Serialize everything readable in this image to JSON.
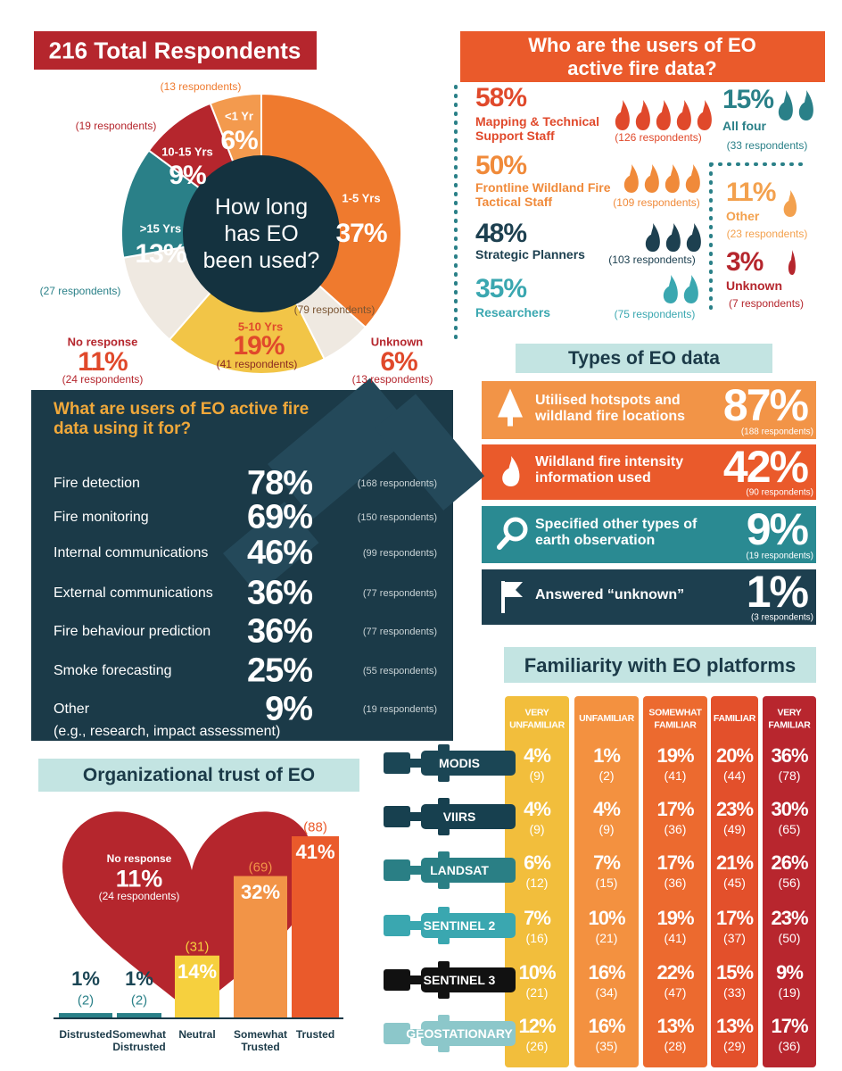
{
  "chart_data": [
    {
      "type": "pie",
      "title": "216 Total Respondents",
      "center_text": "How long has EO been used?",
      "categories": [
        "1-5 Yrs",
        "Unknown",
        "5-10 Yrs",
        "No response",
        ">15 Yrs",
        "10-15 Yrs",
        "<1 Yr"
      ],
      "values": [
        37,
        6,
        19,
        11,
        13,
        9,
        6
      ],
      "value_labels": [
        "37%",
        "6%",
        "19%",
        "11%",
        "13%",
        "9%",
        "6%"
      ],
      "respondents": [
        "(79 respondents)",
        "(13 respondents)",
        "(41 respondents)",
        "(24 respondents)",
        "(27 respondents)",
        "(19 respondents)",
        "(13 respondents)"
      ],
      "colors": [
        "#ef7a2e",
        "#efe9e1",
        "#f2c547",
        "#efe9e1",
        "#2a8088",
        "#b5262d",
        "#f39a4e"
      ]
    },
    {
      "type": "bar",
      "title": "Organizational trust of EO",
      "categories": [
        "Distrusted",
        "Somewhat Distrusted",
        "Neutral",
        "Somewhat Trusted",
        "Trusted"
      ],
      "values": [
        1,
        1,
        14,
        32,
        41
      ],
      "value_labels": [
        "1%",
        "1%",
        "14%",
        "32%",
        "41%"
      ],
      "counts": [
        "(2)",
        "(2)",
        "(31)",
        "(69)",
        "(88)"
      ],
      "colors": [
        "#2a8088",
        "#2a8088",
        "#f6d03e",
        "#f29447",
        "#ea5a2b"
      ],
      "annotation": {
        "label": "No response",
        "value_label": "11%",
        "respondents": "(24 respondents)"
      }
    }
  ],
  "users": {
    "title": "Who are the users of EO active fire data?",
    "items": [
      {
        "percent": "58%",
        "label": "Mapping & Technical Support Staff",
        "respondents": "(126 respondents)"
      },
      {
        "percent": "50%",
        "label": "Frontline Wildland Fire Tactical Staff",
        "respondents": "(109 respondents)"
      },
      {
        "percent": "48%",
        "label": "Strategic Planners",
        "respondents": "(103 respondents)"
      },
      {
        "percent": "35%",
        "label": "Researchers",
        "respondents": "(75 respondents)"
      },
      {
        "percent": "15%",
        "label": "All four",
        "respondents": "(33 respondents)"
      },
      {
        "percent": "11%",
        "label": "Other",
        "respondents": "(23 respondents)"
      },
      {
        "percent": "3%",
        "label": "Unknown",
        "respondents": "(7 respondents)"
      }
    ]
  },
  "types": {
    "title": "Types of EO data",
    "rows": [
      {
        "label": "Utilised hotspots and wildland fire locations",
        "percent": "87%",
        "respondents": "(188 respondents)"
      },
      {
        "label": "Wildland fire intensity information used",
        "percent": "42%",
        "respondents": "(90 respondents)"
      },
      {
        "label": "Specified other types of earth observation",
        "percent": "9%",
        "respondents": "(19 respondents)"
      },
      {
        "label": "Answered “unknown”",
        "percent": "1%",
        "respondents": "(3 respondents)"
      }
    ]
  },
  "uses": {
    "title": "What are users of EO active fire data using it for?",
    "rows": [
      {
        "label": "Fire detection",
        "percent": "78%",
        "respondents": "(168 respondents)"
      },
      {
        "label": "Fire monitoring",
        "percent": "69%",
        "respondents": "(150 respondents)"
      },
      {
        "label": "Internal communications",
        "percent": "46%",
        "respondents": "(99 respondents)"
      },
      {
        "label": "External communications",
        "percent": "36%",
        "respondents": "(77 respondents)"
      },
      {
        "label": "Fire behaviour prediction",
        "percent": "36%",
        "respondents": "(77 respondents)"
      },
      {
        "label": "Smoke forecasting",
        "percent": "25%",
        "respondents": "(55 respondents)"
      },
      {
        "label": "Other",
        "detail": "(e.g., research, impact assessment)",
        "percent": "9%",
        "respondents": "(19 respondents)"
      }
    ]
  },
  "familiarity": {
    "title": "Familiarity with EO platforms",
    "levels": [
      "VERY UNFAMILIAR",
      "UNFAMILIAR",
      "SOMEWHAT FAMILIAR",
      "FAMILIAR",
      "VERY FAMILIAR"
    ],
    "platforms": [
      {
        "name": "MODIS",
        "cells": [
          [
            "4%",
            "(9)"
          ],
          [
            "1%",
            "(2)"
          ],
          [
            "19%",
            "(41)"
          ],
          [
            "20%",
            "(44)"
          ],
          [
            "36%",
            "(78)"
          ]
        ]
      },
      {
        "name": "VIIRS",
        "cells": [
          [
            "4%",
            "(9)"
          ],
          [
            "4%",
            "(9)"
          ],
          [
            "17%",
            "(36)"
          ],
          [
            "23%",
            "(49)"
          ],
          [
            "30%",
            "(65)"
          ]
        ]
      },
      {
        "name": "LANDSAT",
        "cells": [
          [
            "6%",
            "(12)"
          ],
          [
            "7%",
            "(15)"
          ],
          [
            "17%",
            "(36)"
          ],
          [
            "21%",
            "(45)"
          ],
          [
            "26%",
            "(56)"
          ]
        ]
      },
      {
        "name": "SENTINEL 2",
        "cells": [
          [
            "7%",
            "(16)"
          ],
          [
            "10%",
            "(21)"
          ],
          [
            "19%",
            "(41)"
          ],
          [
            "17%",
            "(37)"
          ],
          [
            "23%",
            "(50)"
          ]
        ]
      },
      {
        "name": "SENTINEL 3",
        "cells": [
          [
            "10%",
            "(21)"
          ],
          [
            "16%",
            "(34)"
          ],
          [
            "22%",
            "(47)"
          ],
          [
            "15%",
            "(33)"
          ],
          [
            "9%",
            "(19)"
          ]
        ]
      },
      {
        "name": "GEOSTATIONARY",
        "cells": [
          [
            "12%",
            "(26)"
          ],
          [
            "16%",
            "(35)"
          ],
          [
            "13%",
            "(28)"
          ],
          [
            "13%",
            "(29)"
          ],
          [
            "17%",
            "(36)"
          ]
        ]
      }
    ]
  }
}
